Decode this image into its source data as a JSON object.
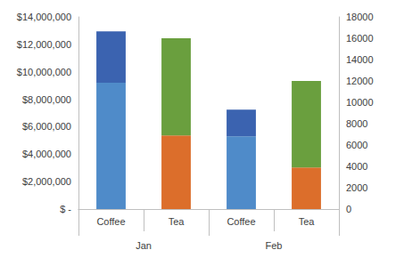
{
  "chart_data": {
    "type": "bar",
    "stacked": true,
    "grid": false,
    "categories": [
      "Coffee",
      "Tea",
      "Coffee",
      "Tea"
    ],
    "category_groups": [
      "Jan",
      "Jan",
      "Feb",
      "Feb"
    ],
    "ylim": [
      0,
      14000000
    ],
    "yticks": [
      {
        "value": 0,
        "label": "$ -"
      },
      {
        "value": 2000000,
        "label": "$2,000,000"
      },
      {
        "value": 4000000,
        "label": "$4,000,000"
      },
      {
        "value": 6000000,
        "label": "$6,000,000"
      },
      {
        "value": 8000000,
        "label": "$8,000,000"
      },
      {
        "value": 10000000,
        "label": "$10,000,000"
      },
      {
        "value": 12000000,
        "label": "$12,000,000"
      },
      {
        "value": 14000000,
        "label": "$14,000,000"
      }
    ],
    "y2lim": [
      0,
      18000
    ],
    "y2ticks": [
      0,
      2000,
      4000,
      6000,
      8000,
      10000,
      12000,
      14000,
      16000,
      18000
    ],
    "series": [
      {
        "color": "#4F8BC9",
        "values": [
          9200000,
          null,
          5300000,
          null
        ]
      },
      {
        "color": "#3B63B0",
        "values": [
          3750000,
          null,
          1950000,
          null
        ]
      },
      {
        "color": "#DC6E2B",
        "values": [
          null,
          6900,
          null,
          3900
        ],
        "axis": "y2"
      },
      {
        "color": "#6A9F3E",
        "values": [
          null,
          9100,
          null,
          8100
        ],
        "axis": "y2"
      }
    ]
  }
}
